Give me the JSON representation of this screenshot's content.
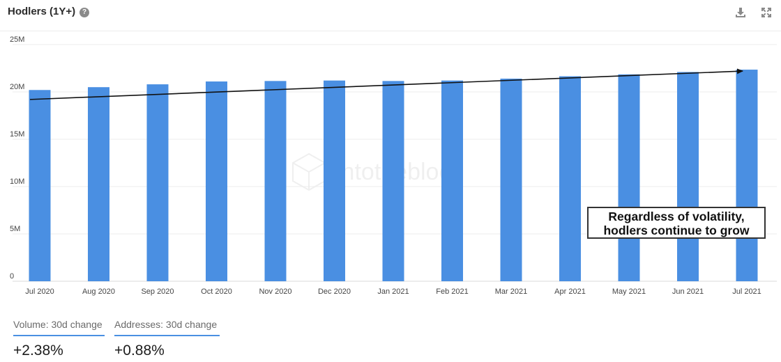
{
  "header": {
    "title": "Hodlers (1Y+)",
    "help_icon": "question-circle-icon",
    "help_glyph": "?",
    "download_icon": "download-icon",
    "fullscreen_icon": "expand-icon"
  },
  "chart_data": {
    "type": "bar",
    "categories": [
      "Jul 2020",
      "Aug 2020",
      "Sep 2020",
      "Oct 2020",
      "Nov 2020",
      "Dec 2020",
      "Jan 2021",
      "Feb 2021",
      "Mar 2021",
      "Apr 2021",
      "May 2021",
      "Jun 2021",
      "Jul 2021"
    ],
    "values": [
      20200000,
      20500000,
      20800000,
      21100000,
      21150000,
      21200000,
      21150000,
      21200000,
      21400000,
      21650000,
      21850000,
      22100000,
      22350000
    ],
    "y_ticks": [
      "0",
      "5M",
      "10M",
      "15M",
      "20M",
      "25M"
    ],
    "ylim": [
      0,
      25000000
    ],
    "grid": true,
    "bar_color": "#4a8fe2",
    "watermark": "intotheblock",
    "trend_arrow": {
      "from": 19200000,
      "to": 22200000
    },
    "annotation": [
      "Regardless of volatility,",
      "hodlers continue to grow"
    ]
  },
  "stats": [
    {
      "label": "Volume: 30d change",
      "value": "+2.38%"
    },
    {
      "label": "Addresses: 30d change",
      "value": "+0.88%"
    }
  ]
}
